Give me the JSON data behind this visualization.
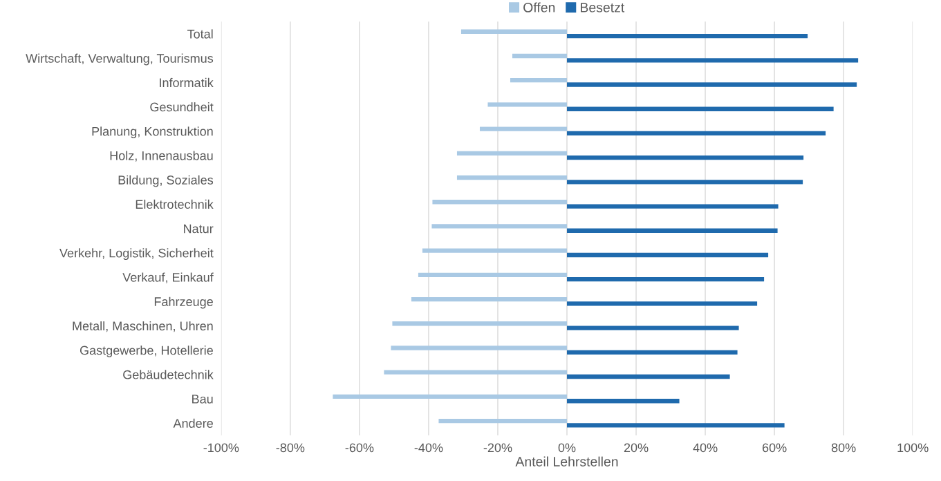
{
  "chart_data": {
    "type": "bar",
    "orientation": "horizontal",
    "xlabel": "Anteil Lehrstellen",
    "categories": [
      "Total",
      "Wirtschaft, Verwaltung, Tourismus",
      "Informatik",
      "Gesundheit",
      "Planung, Konstruktion",
      "Holz, Innenausbau",
      "Bildung, Soziales",
      "Elektrotechnik",
      "Natur",
      "Verkehr, Logistik, Sicherheit",
      "Verkauf, Einkauf",
      "Fahrzeuge",
      "Metall, Maschinen, Uhren",
      "Gastgewerbe, Hotellerie",
      "Gebäudetechnik",
      "Bau",
      "Andere"
    ],
    "series": [
      {
        "name": "Offen",
        "color": "#a9c9e4",
        "values": [
          -30.6,
          -15.8,
          -16.4,
          -22.9,
          -25.2,
          -31.8,
          -31.8,
          -38.9,
          -39.1,
          -41.8,
          -43.0,
          -45.0,
          -50.5,
          -50.9,
          -52.9,
          -67.7,
          -37.1
        ]
      },
      {
        "name": "Besetzt",
        "color": "#1f6aad",
        "values": [
          69.6,
          84.2,
          83.8,
          77.1,
          74.8,
          68.4,
          68.2,
          61.1,
          60.9,
          58.2,
          57.0,
          55.0,
          49.7,
          49.3,
          47.1,
          32.5,
          62.9
        ]
      }
    ],
    "xlim": [
      -100,
      100
    ],
    "xticks": [
      {
        "value": -100,
        "label": "-100%"
      },
      {
        "value": -80,
        "label": "-80%"
      },
      {
        "value": -60,
        "label": "-60%"
      },
      {
        "value": -40,
        "label": "-40%"
      },
      {
        "value": -20,
        "label": "-20%"
      },
      {
        "value": 0,
        "label": "0%"
      },
      {
        "value": 20,
        "label": "20%"
      },
      {
        "value": 40,
        "label": "40%"
      },
      {
        "value": 60,
        "label": "60%"
      },
      {
        "value": 80,
        "label": "80%"
      },
      {
        "value": 100,
        "label": "100%"
      }
    ],
    "grid": "x",
    "legend": "top"
  }
}
